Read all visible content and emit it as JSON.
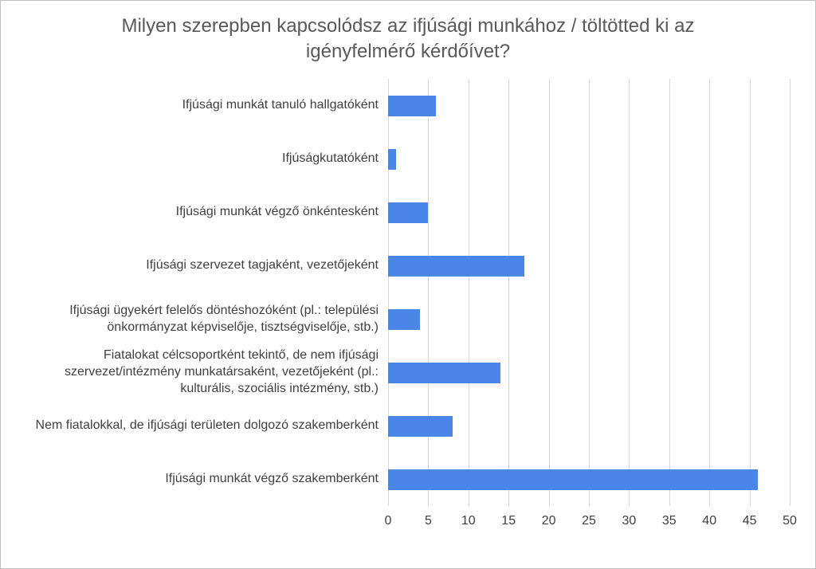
{
  "chart_data": {
    "type": "bar",
    "orientation": "horizontal",
    "title": "Milyen szerepben kapcsolódsz az ifjúsági munkához / töltötted ki az igényfelmérő kérdőívet?",
    "categories": [
      "Ifjúsági munkát tanuló hallgatóként",
      "Ifjúságkutatóként",
      "Ifjúsági munkát végző önkéntesként",
      "Ifjúsági szervezet tagjaként, vezetőjeként",
      "Ifjúsági ügyekért felelős döntéshozóként (pl.: települési önkormányzat képviselője, tisztségviselője, stb.)",
      "Fiatalokat célcsoportként tekintő, de nem ifjúsági szervezet/intézmény munkatársaként, vezetőjeként (pl.: kulturális, szociális intézmény, stb.)",
      "Nem fiatalokkal, de ifjúsági területen dolgozó szakemberként",
      "Ifjúsági munkát végző szakemberként"
    ],
    "values": [
      6,
      1,
      5,
      17,
      4,
      14,
      8,
      46
    ],
    "xlabel": "",
    "ylabel": "",
    "xlim": [
      0,
      50
    ],
    "xticks": [
      0,
      5,
      10,
      15,
      20,
      25,
      30,
      35,
      40,
      45,
      50
    ],
    "grid": true,
    "legend": false,
    "bar_color": "#4a86e8",
    "gridline_color": "#d9d9d9",
    "title_color": "#595959",
    "label_color": "#404040"
  }
}
